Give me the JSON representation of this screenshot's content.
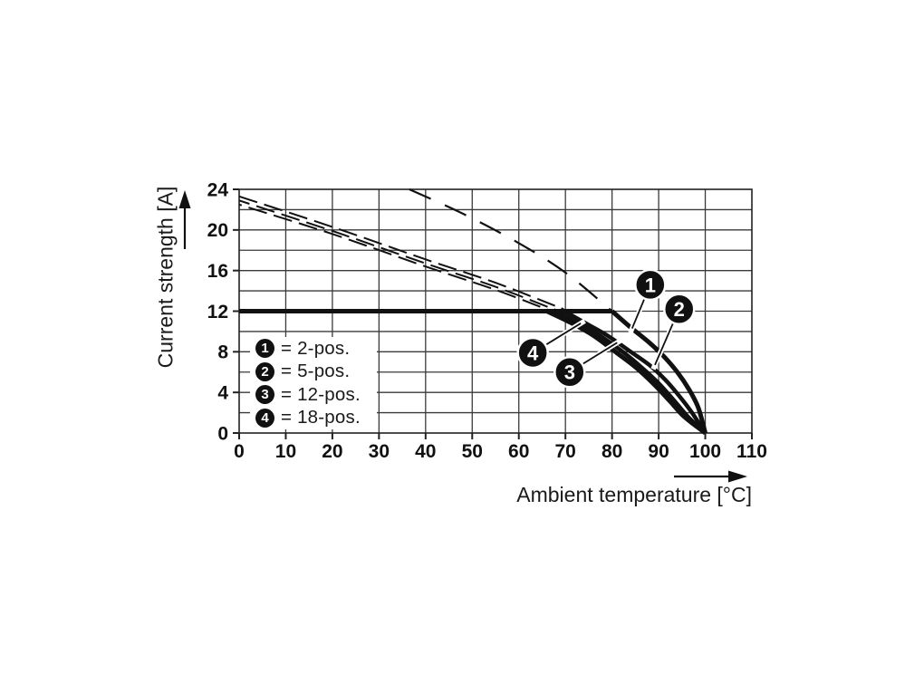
{
  "page": {
    "background": "#ffffff"
  },
  "colors": {
    "ink": "#111111",
    "grid": "#3a3a3a",
    "text": "#1a1a1a",
    "background": "#ffffff"
  },
  "chart_data": {
    "type": "line",
    "title": "",
    "xlabel": "Ambient temperature [°C]",
    "ylabel": "Current strength [A]",
    "xlim": [
      0,
      110
    ],
    "ylim": [
      0,
      24
    ],
    "xticks": [
      0,
      10,
      20,
      30,
      40,
      50,
      60,
      70,
      80,
      90,
      100,
      110
    ],
    "yticks": [
      0,
      4,
      8,
      12,
      16,
      20,
      24
    ],
    "y_grid_step": 2,
    "x_grid_step": 10,
    "grid": true,
    "legend_position": "inside-lower-left",
    "series": [
      {
        "name": "current-limit-12A",
        "style": "solid",
        "width": 5,
        "points": [
          [
            0,
            12
          ],
          [
            80,
            12
          ]
        ]
      },
      {
        "name": "2-pos-rated-dashed",
        "style": "dashed-long",
        "width": 2.2,
        "dash_phase": 0,
        "points": [
          [
            36.5,
            24
          ],
          [
            48,
            21.6
          ],
          [
            60,
            18.7
          ],
          [
            70,
            15.8
          ],
          [
            80,
            12
          ]
        ]
      },
      {
        "name": "5-pos-rated-dashed",
        "style": "dashed",
        "width": 2,
        "dash_phase": 0,
        "points": [
          [
            0,
            23.3
          ],
          [
            20,
            20.3
          ],
          [
            40,
            17.1
          ],
          [
            55,
            14.8
          ],
          [
            69,
            12.3
          ]
        ]
      },
      {
        "name": "12-pos-rated-dashed",
        "style": "dashed",
        "width": 2,
        "dash_phase": 9,
        "points": [
          [
            0,
            22.9
          ],
          [
            20,
            19.9
          ],
          [
            40,
            16.7
          ],
          [
            55,
            14.4
          ],
          [
            68,
            12.1
          ]
        ]
      },
      {
        "name": "18-pos-rated-dashed",
        "style": "dashed",
        "width": 2,
        "dash_phase": 18,
        "points": [
          [
            0,
            22.5
          ],
          [
            20,
            19.6
          ],
          [
            40,
            16.4
          ],
          [
            55,
            14.1
          ],
          [
            67,
            12.0
          ]
        ]
      },
      {
        "name": "2-pos-derated",
        "style": "solid",
        "width": 5,
        "points": [
          [
            80,
            12
          ],
          [
            84,
            10.4
          ],
          [
            88,
            8.9
          ],
          [
            91,
            7.6
          ],
          [
            94,
            6.0
          ],
          [
            96.5,
            4.3
          ],
          [
            98.5,
            2.5
          ],
          [
            100,
            0
          ]
        ]
      },
      {
        "name": "5-pos-derated",
        "style": "solid",
        "width": 4.5,
        "points": [
          [
            69,
            12.2
          ],
          [
            74,
            10.9
          ],
          [
            79,
            9.6
          ],
          [
            84,
            8.0
          ],
          [
            88,
            6.7
          ],
          [
            91.5,
            5.2
          ],
          [
            94.5,
            3.6
          ],
          [
            97,
            2.1
          ],
          [
            100,
            0
          ]
        ]
      },
      {
        "name": "12-pos-derated",
        "style": "solid",
        "width": 4.5,
        "points": [
          [
            67.5,
            12.1
          ],
          [
            72,
            11.0
          ],
          [
            77,
            9.7
          ],
          [
            82,
            8.1
          ],
          [
            86,
            6.6
          ],
          [
            90,
            4.9
          ],
          [
            93.5,
            3.1
          ],
          [
            96.5,
            1.5
          ],
          [
            100,
            0
          ]
        ]
      },
      {
        "name": "18-pos-derated",
        "style": "solid",
        "width": 5,
        "points": [
          [
            66,
            12.0
          ],
          [
            71,
            10.9
          ],
          [
            76,
            9.6
          ],
          [
            81,
            7.9
          ],
          [
            85,
            6.5
          ],
          [
            89,
            4.8
          ],
          [
            92.5,
            3.1
          ],
          [
            95.5,
            1.6
          ],
          [
            100,
            0
          ]
        ]
      }
    ],
    "markers": [
      {
        "num": "1",
        "x": 88.2,
        "y": 14.6,
        "touch_x": 84.3,
        "touch_y": 10.3
      },
      {
        "num": "2",
        "x": 94.4,
        "y": 12.2,
        "touch_x": 89.2,
        "touch_y": 6.7
      },
      {
        "num": "3",
        "x": 70.9,
        "y": 6.0,
        "touch_x": 81.1,
        "touch_y": 8.9
      },
      {
        "num": "4",
        "x": 63.0,
        "y": 7.9,
        "touch_x": 73.3,
        "touch_y": 10.8
      }
    ],
    "legend": [
      {
        "num": "1",
        "label": "= 2-pos."
      },
      {
        "num": "2",
        "label": "= 5-pos."
      },
      {
        "num": "3",
        "label": "= 12-pos."
      },
      {
        "num": "4",
        "label": "= 18-pos."
      }
    ]
  }
}
